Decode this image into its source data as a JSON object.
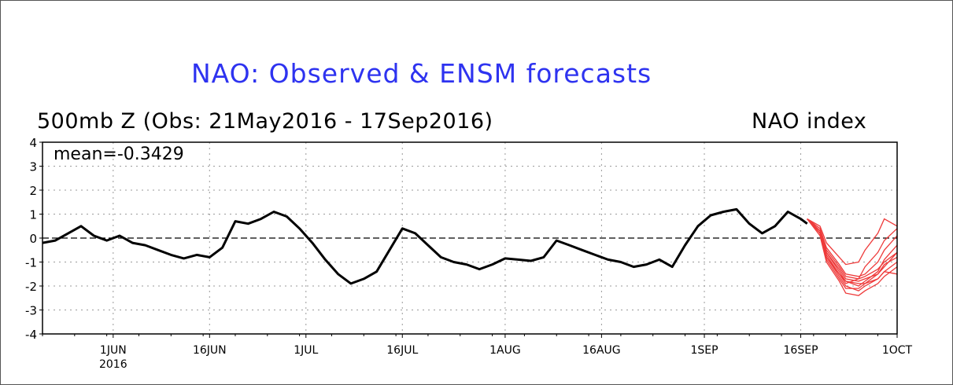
{
  "chart_data": {
    "type": "line",
    "title": "NAO: Observed & ENSM forecasts",
    "subtitle": "500mb Z (Obs: 21May2016 - 17Sep2016)",
    "ylabel": "NAO index",
    "annotation": "mean=-0.3429",
    "xlim": [
      "2016-05-21",
      "2016-10-01"
    ],
    "ylim": [
      -4,
      4
    ],
    "yticks": [
      "4",
      "3",
      "2",
      "1",
      "0",
      "-1",
      "-2",
      "-3",
      "-4"
    ],
    "xticks": [
      {
        "date": "2016-06-01",
        "label": "1JUN",
        "sublabel": "2016"
      },
      {
        "date": "2016-06-16",
        "label": "16JUN"
      },
      {
        "date": "2016-07-01",
        "label": "1JUL"
      },
      {
        "date": "2016-07-16",
        "label": "16JUL"
      },
      {
        "date": "2016-08-01",
        "label": "1AUG"
      },
      {
        "date": "2016-08-16",
        "label": "16AUG"
      },
      {
        "date": "2016-09-01",
        "label": "1SEP"
      },
      {
        "date": "2016-09-16",
        "label": "16SEP"
      },
      {
        "date": "2016-10-01",
        "label": "1OCT"
      }
    ],
    "grid": true,
    "colors": {
      "title": "#2e33f0",
      "observed": "#000000",
      "forecast": "#ee3a3a",
      "zero_line": "#000000"
    },
    "observed": {
      "x": [
        "2016-05-21",
        "2016-05-23",
        "2016-05-25",
        "2016-05-27",
        "2016-05-29",
        "2016-05-31",
        "2016-06-02",
        "2016-06-04",
        "2016-06-06",
        "2016-06-08",
        "2016-06-10",
        "2016-06-12",
        "2016-06-14",
        "2016-06-16",
        "2016-06-18",
        "2016-06-20",
        "2016-06-22",
        "2016-06-24",
        "2016-06-26",
        "2016-06-28",
        "2016-06-30",
        "2016-07-02",
        "2016-07-04",
        "2016-07-06",
        "2016-07-08",
        "2016-07-10",
        "2016-07-12",
        "2016-07-14",
        "2016-07-16",
        "2016-07-18",
        "2016-07-20",
        "2016-07-22",
        "2016-07-24",
        "2016-07-26",
        "2016-07-28",
        "2016-07-30",
        "2016-08-01",
        "2016-08-03",
        "2016-08-05",
        "2016-08-07",
        "2016-08-09",
        "2016-08-11",
        "2016-08-13",
        "2016-08-15",
        "2016-08-17",
        "2016-08-19",
        "2016-08-21",
        "2016-08-23",
        "2016-08-25",
        "2016-08-27",
        "2016-08-29",
        "2016-08-31",
        "2016-09-02",
        "2016-09-04",
        "2016-09-06",
        "2016-09-08",
        "2016-09-10",
        "2016-09-12",
        "2016-09-14",
        "2016-09-16",
        "2016-09-17"
      ],
      "y": [
        -0.2,
        -0.1,
        0.2,
        0.5,
        0.1,
        -0.1,
        0.1,
        -0.2,
        -0.3,
        -0.5,
        -0.7,
        -0.85,
        -0.7,
        -0.8,
        -0.4,
        0.7,
        0.6,
        0.8,
        1.1,
        0.9,
        0.4,
        -0.2,
        -0.9,
        -1.5,
        -1.9,
        -1.7,
        -1.4,
        -0.5,
        0.4,
        0.2,
        -0.3,
        -0.8,
        -1.0,
        -1.1,
        -1.3,
        -1.1,
        -0.85,
        -0.9,
        -0.95,
        -0.8,
        -0.1,
        -0.3,
        -0.5,
        -0.7,
        -0.9,
        -1.0,
        -1.2,
        -1.1,
        -0.9,
        -1.2,
        -0.3,
        0.5,
        0.95,
        1.1,
        1.2,
        0.6,
        0.2,
        0.5,
        1.1,
        0.8,
        0.6
      ]
    },
    "forecasts": [
      {
        "y": [
          0.8,
          0.3,
          -0.6,
          -1.3,
          -1.7,
          -1.8,
          -1.7,
          -1.5,
          -1.2,
          -0.6
        ]
      },
      {
        "y": [
          0.8,
          0.2,
          -0.8,
          -1.6,
          -2.0,
          -2.2,
          -2.0,
          -1.7,
          -1.4,
          -1.0
        ]
      },
      {
        "y": [
          0.8,
          0.4,
          -0.4,
          -1.1,
          -1.5,
          -1.6,
          -1.5,
          -1.0,
          -0.5,
          0.1
        ]
      },
      {
        "y": [
          0.8,
          0.3,
          -0.7,
          -1.5,
          -1.9,
          -1.7,
          -1.2,
          -0.6,
          -0.1,
          0.4
        ]
      },
      {
        "y": [
          0.8,
          0.1,
          -1.0,
          -1.8,
          -2.3,
          -2.4,
          -2.2,
          -1.9,
          -1.6,
          -1.2
        ]
      },
      {
        "y": [
          0.8,
          0.3,
          -0.5,
          -1.2,
          -1.6,
          -1.7,
          -1.6,
          -1.3,
          -1.0,
          -0.6
        ]
      },
      {
        "y": [
          0.8,
          0.5,
          -0.2,
          -0.8,
          -1.1,
          -1.0,
          -0.5,
          0.2,
          0.8,
          0.5
        ]
      },
      {
        "y": [
          0.8,
          0.2,
          -0.8,
          -1.5,
          -1.8,
          -1.9,
          -1.9,
          -1.7,
          -1.4,
          -1.5
        ]
      },
      {
        "y": [
          0.8,
          0.3,
          -0.6,
          -1.4,
          -1.8,
          -2.0,
          -1.8,
          -1.4,
          -0.9,
          -0.3
        ]
      },
      {
        "y": [
          0.8,
          0.2,
          -0.9,
          -1.7,
          -2.1,
          -2.1,
          -1.9,
          -1.5,
          -1.1,
          -0.8
        ]
      }
    ],
    "forecast_x": [
      "2016-09-17",
      "2016-09-19",
      "2016-09-20",
      "2016-09-22",
      "2016-09-23",
      "2016-09-25",
      "2016-09-26",
      "2016-09-28",
      "2016-09-29",
      "2016-10-01"
    ]
  }
}
